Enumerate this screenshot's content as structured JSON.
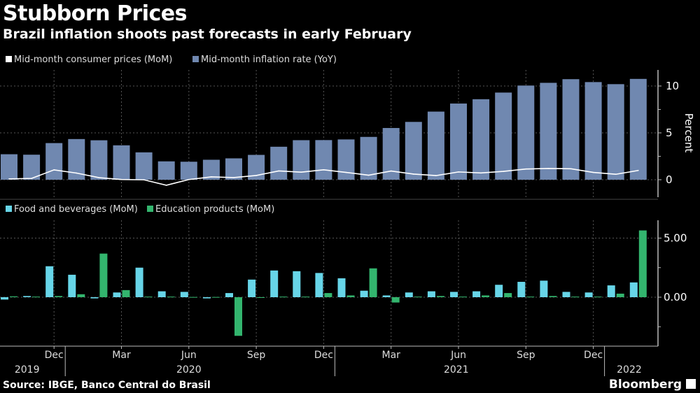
{
  "title": "Stubborn Prices",
  "subtitle": "Brazil inflation shoots past forecasts in early February",
  "source": "Source: IBGE, Banco Central do Brasil",
  "brand": "Bloomberg",
  "colors": {
    "background": "#000000",
    "mom_line": "#ffffff",
    "yoy_bar": "#7088b0",
    "food": "#67d5e8",
    "education": "#33b56e"
  },
  "chart_data": [
    {
      "type": "bar+line",
      "ylabel": "Percent",
      "ylim": [
        -1,
        12
      ],
      "yticks": [
        "0",
        "5",
        "10"
      ],
      "grid": true,
      "legend_placement": "top-left",
      "x": [
        "2019-10",
        "2019-11",
        "2019-12",
        "2020-01",
        "2020-02",
        "2020-03",
        "2020-04",
        "2020-05",
        "2020-06",
        "2020-07",
        "2020-08",
        "2020-09",
        "2020-10",
        "2020-11",
        "2020-12",
        "2021-01",
        "2021-02",
        "2021-03",
        "2021-04",
        "2021-05",
        "2021-06",
        "2021-07",
        "2021-08",
        "2021-09",
        "2021-10",
        "2021-11",
        "2021-12",
        "2022-01",
        "2022-02"
      ],
      "series": [
        {
          "name": "Mid-month consumer prices (MoM)",
          "type": "line",
          "values": [
            0.09,
            0.14,
            1.05,
            0.71,
            0.22,
            0.02,
            -0.01,
            -0.59,
            0.02,
            0.3,
            0.23,
            0.45,
            0.94,
            0.81,
            1.06,
            0.78,
            0.48,
            0.93,
            0.6,
            0.44,
            0.83,
            0.72,
            0.89,
            1.14,
            1.2,
            1.17,
            0.78,
            0.58,
            0.99
          ]
        },
        {
          "name": "Mid-month inflation rate (YoY)",
          "type": "bar",
          "values": [
            2.72,
            2.67,
            3.91,
            4.34,
            4.21,
            3.67,
            2.92,
            1.96,
            1.92,
            2.13,
            2.28,
            2.65,
            3.52,
            4.22,
            4.23,
            4.3,
            4.57,
            5.52,
            6.17,
            7.27,
            8.13,
            8.59,
            9.3,
            10.05,
            10.34,
            10.73,
            10.42,
            10.2,
            10.76
          ]
        }
      ]
    },
    {
      "type": "bar",
      "ylim": [
        -4.5,
        6.5
      ],
      "yticks": [
        "0.00",
        "5.00"
      ],
      "grid": true,
      "legend_placement": "top-left",
      "series": [
        {
          "name": "Food and beverages (MoM)",
          "values": [
            -0.2,
            0.1,
            2.62,
            1.9,
            -0.1,
            0.4,
            2.5,
            0.5,
            0.45,
            -0.1,
            0.35,
            1.49,
            2.26,
            2.2,
            2.05,
            1.6,
            0.55,
            0.15,
            0.4,
            0.5,
            0.45,
            0.5,
            1.05,
            1.3,
            1.4,
            0.45,
            0.4,
            1.0,
            1.25
          ]
        },
        {
          "name": "Education products (MoM)",
          "values": [
            0.07,
            0.05,
            0.1,
            0.25,
            3.69,
            0.6,
            0.05,
            0.05,
            0.02,
            0.02,
            -3.27,
            -0.05,
            0.05,
            0.05,
            0.35,
            0.15,
            2.44,
            -0.45,
            0.05,
            0.1,
            0.05,
            0.15,
            0.35,
            0.05,
            0.1,
            0.05,
            0.05,
            0.3,
            5.65
          ]
        }
      ]
    }
  ],
  "x_axis": {
    "month_labels": [
      {
        "label": "Dec",
        "index": 2
      },
      {
        "label": "Mar",
        "index": 5
      },
      {
        "label": "Jun",
        "index": 8
      },
      {
        "label": "Sep",
        "index": 11
      },
      {
        "label": "Dec",
        "index": 14
      },
      {
        "label": "Mar",
        "index": 17
      },
      {
        "label": "Jun",
        "index": 20
      },
      {
        "label": "Sep",
        "index": 23
      },
      {
        "label": "Dec",
        "index": 26
      }
    ],
    "year_labels": [
      {
        "label": "2019",
        "index": 0.8
      },
      {
        "label": "2020",
        "index": 8
      },
      {
        "label": "2021",
        "index": 19.9
      },
      {
        "label": "2022",
        "index": 27.6
      }
    ]
  }
}
